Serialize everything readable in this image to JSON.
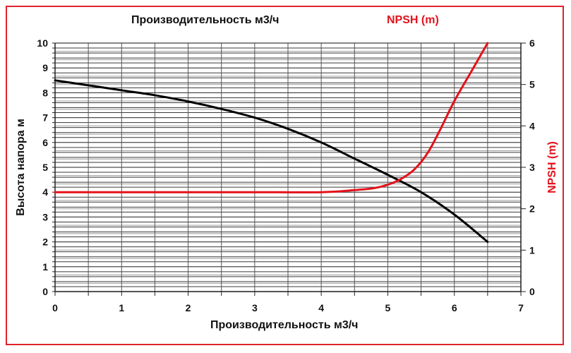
{
  "chart_data": {
    "type": "line",
    "title": "Производительность м3/ч",
    "secondary_title": "NPSH (m)",
    "xlabel": "Производительность м3/ч",
    "ylabel": "Высота напора м",
    "y2label": "NPSH (m)",
    "xlim": [
      0,
      7
    ],
    "ylim": [
      0,
      10
    ],
    "y2lim": [
      0,
      6
    ],
    "x_ticks": [
      "0",
      "1",
      "2",
      "3",
      "4",
      "5",
      "6",
      "7"
    ],
    "y_ticks": [
      "0",
      "1",
      "2",
      "3",
      "4",
      "5",
      "6",
      "7",
      "8",
      "9",
      "10"
    ],
    "y2_ticks": [
      "0",
      "1",
      "2",
      "3",
      "4",
      "5",
      "6"
    ],
    "grid": true,
    "series": [
      {
        "name": "Высота напора м",
        "axis": "left",
        "color": "#000000",
        "x": [
          0,
          0.5,
          1,
          1.5,
          2,
          2.5,
          3,
          3.5,
          4,
          4.5,
          5,
          5.5,
          6,
          6.5
        ],
        "values": [
          8.5,
          8.3,
          8.1,
          7.9,
          7.65,
          7.35,
          7.0,
          6.55,
          6.0,
          5.35,
          4.7,
          4.0,
          3.1,
          2.0
        ]
      },
      {
        "name": "NPSH (m)",
        "axis": "right",
        "color": "#e3121b",
        "x": [
          0,
          1,
          2,
          3,
          4,
          4.5,
          4.8,
          5,
          5.2,
          5.4,
          5.6,
          5.8,
          6,
          6.25,
          6.5
        ],
        "values": [
          2.4,
          2.4,
          2.4,
          2.4,
          2.4,
          2.45,
          2.5,
          2.58,
          2.72,
          2.95,
          3.35,
          3.95,
          4.6,
          5.3,
          6.0
        ]
      }
    ]
  },
  "labels": {
    "title": "Производительность м3/ч",
    "npsh_title": "NPSH (m)",
    "xlabel": "Производительность м3/ч",
    "ylabel": "Высота напора м",
    "y2label": "NPSH (m)"
  },
  "colors": {
    "frame": "#e0232b",
    "head_curve": "#000000",
    "npsh_curve": "#e3121b"
  }
}
